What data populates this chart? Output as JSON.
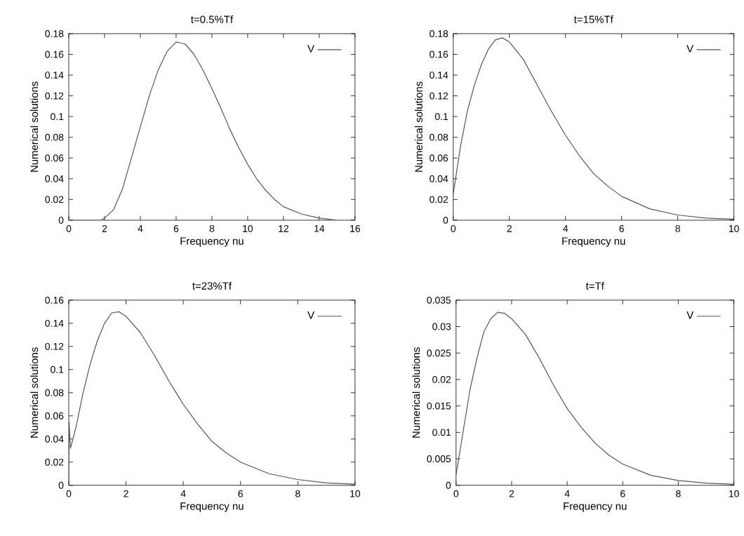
{
  "chart_data": [
    {
      "type": "line",
      "title": "t=0.5%Tf",
      "xlabel": "Frequency nu",
      "ylabel": "Numerical solutions",
      "xlim": [
        0,
        16
      ],
      "ylim": [
        0,
        0.18
      ],
      "xticks": [
        0,
        2,
        4,
        6,
        8,
        10,
        12,
        14,
        16
      ],
      "yticks": [
        0,
        0.02,
        0.04,
        0.06,
        0.08,
        0.1,
        0.12,
        0.14,
        0.16,
        0.18
      ],
      "legend": "top right",
      "grid": false,
      "line_style": "solid",
      "marker": "none",
      "x": [
        0,
        1,
        1.8,
        2,
        2.5,
        3,
        3.5,
        4,
        4.5,
        5,
        5.5,
        6,
        6.5,
        7,
        7.5,
        8,
        8.5,
        9,
        9.5,
        10,
        10.5,
        11,
        11.5,
        12,
        13,
        14,
        15
      ],
      "series": [
        {
          "name": "V",
          "color": "#555555",
          "values": [
            0,
            0,
            0,
            0.002,
            0.01,
            0.03,
            0.06,
            0.09,
            0.12,
            0.145,
            0.163,
            0.172,
            0.17,
            0.16,
            0.145,
            0.127,
            0.108,
            0.088,
            0.07,
            0.054,
            0.04,
            0.029,
            0.02,
            0.013,
            0.006,
            0.002,
            0
          ]
        }
      ]
    },
    {
      "type": "line",
      "title": "t=15%Tf",
      "xlabel": "Frequency nu",
      "ylabel": "Numerical solutions",
      "xlim": [
        0,
        10
      ],
      "ylim": [
        0,
        0.18
      ],
      "xticks": [
        0,
        2,
        4,
        6,
        8,
        10
      ],
      "yticks": [
        0,
        0.02,
        0.04,
        0.06,
        0.08,
        0.1,
        0.12,
        0.14,
        0.16,
        0.18
      ],
      "legend": "top right",
      "grid": false,
      "line_style": "solid",
      "marker": "none",
      "x": [
        0,
        0.25,
        0.5,
        0.75,
        1,
        1.25,
        1.5,
        1.75,
        2,
        2.5,
        3,
        3.5,
        4,
        4.5,
        5,
        5.5,
        6,
        7,
        8,
        9,
        10
      ],
      "series": [
        {
          "name": "V",
          "color": "#555555",
          "values": [
            0.025,
            0.07,
            0.105,
            0.13,
            0.15,
            0.165,
            0.174,
            0.176,
            0.172,
            0.155,
            0.13,
            0.105,
            0.082,
            0.062,
            0.045,
            0.033,
            0.023,
            0.011,
            0.005,
            0.002,
            0.001
          ]
        }
      ]
    },
    {
      "type": "line",
      "title": "t=23%Tf",
      "xlabel": "Frequency nu",
      "ylabel": "Numerical solutions",
      "xlim": [
        0,
        10
      ],
      "ylim": [
        0,
        0.16
      ],
      "xticks": [
        0,
        2,
        4,
        6,
        8,
        10
      ],
      "yticks": [
        0,
        0.02,
        0.04,
        0.06,
        0.08,
        0.1,
        0.12,
        0.14,
        0.16
      ],
      "legend": "top right",
      "grid": false,
      "line_style": "solid",
      "marker": "none",
      "x": [
        0,
        0.01,
        0.06,
        0.25,
        0.5,
        0.75,
        1,
        1.25,
        1.5,
        1.75,
        2,
        2.5,
        3,
        3.5,
        4,
        4.5,
        5,
        5.5,
        6,
        7,
        8,
        9,
        10
      ],
      "series": [
        {
          "name": "V",
          "color": "#555555",
          "values": [
            0,
            0.055,
            0.032,
            0.05,
            0.08,
            0.105,
            0.125,
            0.14,
            0.149,
            0.15,
            0.146,
            0.132,
            0.112,
            0.09,
            0.07,
            0.053,
            0.038,
            0.028,
            0.02,
            0.01,
            0.005,
            0.002,
            0.001
          ]
        }
      ]
    },
    {
      "type": "line",
      "title": "t=Tf",
      "xlabel": "Frequency nu",
      "ylabel": "Numerical solutions",
      "xlim": [
        0,
        10
      ],
      "ylim": [
        0,
        0.035
      ],
      "xticks": [
        0,
        2,
        4,
        6,
        8,
        10
      ],
      "yticks": [
        0,
        0.005,
        0.01,
        0.015,
        0.02,
        0.025,
        0.03,
        0.035
      ],
      "legend": "top right",
      "grid": false,
      "line_style": "solid",
      "marker": "none",
      "x": [
        0,
        0.25,
        0.5,
        0.75,
        1,
        1.25,
        1.5,
        1.75,
        2,
        2.5,
        3,
        3.5,
        4,
        4.5,
        5,
        5.5,
        6,
        7,
        8,
        9,
        10
      ],
      "series": [
        {
          "name": "V",
          "color": "#555555",
          "values": [
            0.002,
            0.01,
            0.018,
            0.024,
            0.029,
            0.0315,
            0.0327,
            0.0325,
            0.0315,
            0.0285,
            0.024,
            0.019,
            0.0145,
            0.011,
            0.008,
            0.0057,
            0.004,
            0.0019,
            0.0009,
            0.0004,
            0.0002
          ]
        }
      ]
    }
  ]
}
